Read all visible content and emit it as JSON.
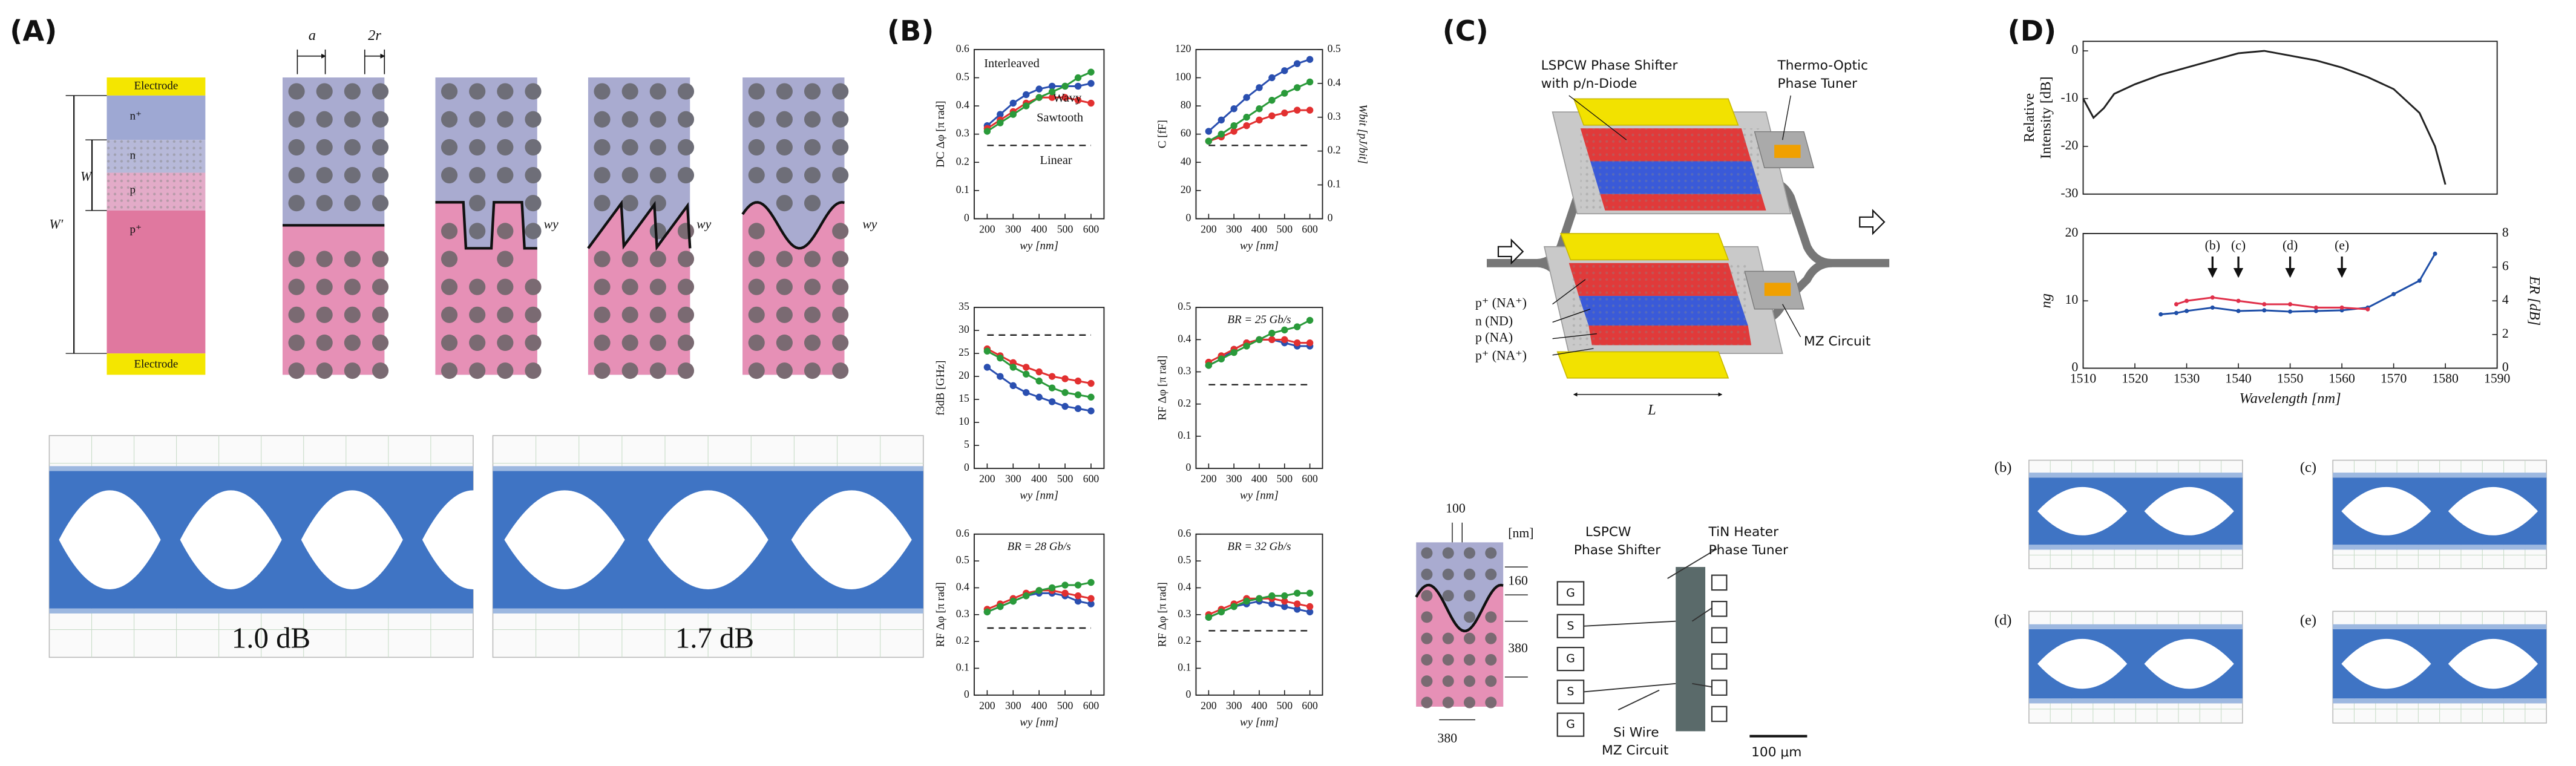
{
  "figure": {
    "labels": [
      "(A)",
      "(B)",
      "(C)",
      "(D)"
    ]
  },
  "panel_a": {
    "stack": [
      "Electrode",
      "n⁺",
      "n",
      "p",
      "p⁺",
      "Electrode"
    ],
    "dims": [
      "W′",
      "W",
      "a",
      "2r"
    ],
    "wy_labels": [
      "wy",
      "wy",
      "wy"
    ]
  },
  "panel_c": {
    "device": [
      "LSPCW Phase Shifter",
      "with p/n-Diode",
      "Thermo-Optic",
      "Phase Tuner",
      "p⁺ (NA⁺)",
      "n (ND)",
      "p (NA)",
      "p⁺ (NA⁺)",
      "L",
      "MZ Circuit"
    ],
    "crystal": [
      "100",
      "[nm]",
      "160",
      "380",
      "380"
    ],
    "layout": [
      "LSPCW",
      "Phase Shifter",
      "TiN Heater",
      "Phase Tuner",
      "Si Wire",
      "MZ Circuit",
      "100 μm"
    ],
    "pads": [
      "G",
      "S",
      "G",
      "S",
      "G"
    ]
  },
  "eye_diagrams": {
    "a_labels": [
      "1.0 dB",
      "1.7 dB"
    ],
    "d_labels": [
      "(b)",
      "(c)",
      "(d)",
      "(e)"
    ]
  },
  "chart_data": [
    {
      "type": "line",
      "ylabel": [
        "DC Δφ [π rad]"
      ],
      "xlabel": "wy [nm]",
      "legend": true,
      "markers": true,
      "x": [
        200,
        250,
        300,
        350,
        400,
        450,
        500,
        550,
        600
      ],
      "xlim": [
        150,
        650
      ],
      "xticks": [
        200,
        300,
        400,
        500,
        600
      ],
      "ylim": [
        0,
        0.6
      ],
      "yticks": [
        0,
        0.1,
        0.2,
        0.3,
        0.4,
        0.5,
        0.6
      ],
      "series": [
        {
          "name": "Interleaved",
          "color": "#2a4fb0",
          "values": [
            0.33,
            0.37,
            0.41,
            0.44,
            0.46,
            0.47,
            0.47,
            0.47,
            0.48
          ]
        },
        {
          "name": "Wavy",
          "color": "#e23030",
          "values": [
            0.32,
            0.35,
            0.38,
            0.41,
            0.43,
            0.43,
            0.43,
            0.42,
            0.41
          ]
        },
        {
          "name": "Sawtooth",
          "color": "#2a9a3a",
          "values": [
            0.31,
            0.34,
            0.37,
            0.4,
            0.43,
            0.45,
            0.47,
            0.5,
            0.52
          ]
        },
        {
          "name": "Linear",
          "color": "#222222",
          "style": "dashed",
          "values": [
            0.26,
            0.26,
            0.26,
            0.26,
            0.26,
            0.26,
            0.26,
            0.26,
            0.26
          ]
        }
      ]
    },
    {
      "type": "line",
      "ylabel": [
        "C [fF]"
      ],
      "y2label": "Wbit [pJ/bit]",
      "xlabel": "wy [nm]",
      "markers": true,
      "x": [
        200,
        250,
        300,
        350,
        400,
        450,
        500,
        550,
        600
      ],
      "xlim": [
        150,
        650
      ],
      "xticks": [
        200,
        300,
        400,
        500,
        600
      ],
      "ylim": [
        0,
        120
      ],
      "yticks": [
        0,
        20,
        40,
        60,
        80,
        100,
        120
      ],
      "y2lim": [
        0,
        0.5
      ],
      "y2ticks": [
        0,
        0.1,
        0.2,
        0.3,
        0.4,
        0.5
      ],
      "series": [
        {
          "color": "#2a4fb0",
          "values": [
            62,
            70,
            78,
            86,
            93,
            100,
            105,
            110,
            113
          ]
        },
        {
          "color": "#e23030",
          "values": [
            55,
            58,
            62,
            66,
            70,
            73,
            75,
            77,
            77
          ]
        },
        {
          "color": "#2a9a3a",
          "values": [
            55,
            60,
            66,
            72,
            78,
            84,
            89,
            93,
            97
          ]
        },
        {
          "color": "#222222",
          "style": "dashed",
          "values": [
            52,
            52,
            52,
            52,
            52,
            52,
            52,
            52,
            52
          ]
        }
      ]
    },
    {
      "type": "line",
      "ylabel": [
        "f3dB [GHz]"
      ],
      "xlabel": "wy [nm]",
      "markers": true,
      "x": [
        200,
        250,
        300,
        350,
        400,
        450,
        500,
        550,
        600
      ],
      "xlim": [
        150,
        650
      ],
      "xticks": [
        200,
        300,
        400,
        500,
        600
      ],
      "ylim": [
        0,
        35
      ],
      "yticks": [
        0,
        5,
        10,
        15,
        20,
        25,
        30,
        35
      ],
      "series": [
        {
          "color": "#2a4fb0",
          "values": [
            22,
            20,
            18,
            16.5,
            15.5,
            14.5,
            13.5,
            13,
            12.5
          ]
        },
        {
          "color": "#e23030",
          "values": [
            26,
            24.5,
            23,
            22,
            21,
            20,
            19.5,
            19,
            18.5
          ]
        },
        {
          "color": "#2a9a3a",
          "values": [
            25.5,
            24,
            22,
            20.5,
            19,
            17.5,
            16.5,
            16,
            15.5
          ]
        },
        {
          "color": "#222222",
          "style": "dashed",
          "values": [
            29,
            29,
            29,
            29,
            29,
            29,
            29,
            29,
            29
          ]
        }
      ]
    },
    {
      "type": "line",
      "ylabel": [
        "RF Δφ [π rad]"
      ],
      "xlabel": "wy [nm]",
      "annotation": "BR = 25 Gb/s",
      "markers": true,
      "x": [
        200,
        250,
        300,
        350,
        400,
        450,
        500,
        550,
        600
      ],
      "xlim": [
        150,
        650
      ],
      "xticks": [
        200,
        300,
        400,
        500,
        600
      ],
      "ylim": [
        0,
        0.5
      ],
      "yticks": [
        0,
        0.1,
        0.2,
        0.3,
        0.4,
        0.5
      ],
      "series": [
        {
          "color": "#2a4fb0",
          "values": [
            0.32,
            0.34,
            0.37,
            0.39,
            0.4,
            0.4,
            0.39,
            0.38,
            0.38
          ]
        },
        {
          "color": "#e23030",
          "values": [
            0.33,
            0.35,
            0.37,
            0.39,
            0.4,
            0.4,
            0.4,
            0.39,
            0.39
          ]
        },
        {
          "color": "#2a9a3a",
          "values": [
            0.32,
            0.34,
            0.36,
            0.38,
            0.4,
            0.42,
            0.43,
            0.44,
            0.46
          ]
        },
        {
          "color": "#222222",
          "style": "dashed",
          "values": [
            0.26,
            0.26,
            0.26,
            0.26,
            0.26,
            0.26,
            0.26,
            0.26,
            0.26
          ]
        }
      ]
    },
    {
      "type": "line",
      "ylabel": [
        "RF Δφ [π rad]"
      ],
      "xlabel": "wy [nm]",
      "annotation": "BR = 28 Gb/s",
      "markers": true,
      "x": [
        200,
        250,
        300,
        350,
        400,
        450,
        500,
        550,
        600
      ],
      "xlim": [
        150,
        650
      ],
      "xticks": [
        200,
        300,
        400,
        500,
        600
      ],
      "ylim": [
        0,
        0.6
      ],
      "yticks": [
        0,
        0.1,
        0.2,
        0.3,
        0.4,
        0.5,
        0.6
      ],
      "series": [
        {
          "color": "#2a4fb0",
          "values": [
            0.31,
            0.33,
            0.35,
            0.37,
            0.38,
            0.38,
            0.37,
            0.35,
            0.34
          ]
        },
        {
          "color": "#e23030",
          "values": [
            0.32,
            0.34,
            0.36,
            0.38,
            0.39,
            0.39,
            0.38,
            0.37,
            0.36
          ]
        },
        {
          "color": "#2a9a3a",
          "values": [
            0.31,
            0.33,
            0.35,
            0.37,
            0.39,
            0.4,
            0.41,
            0.41,
            0.42
          ]
        },
        {
          "color": "#222222",
          "style": "dashed",
          "values": [
            0.25,
            0.25,
            0.25,
            0.25,
            0.25,
            0.25,
            0.25,
            0.25,
            0.25
          ]
        }
      ]
    },
    {
      "type": "line",
      "ylabel": [
        "RF Δφ [π rad]"
      ],
      "xlabel": "wy [nm]",
      "annotation": "BR = 32 Gb/s",
      "markers": true,
      "x": [
        200,
        250,
        300,
        350,
        400,
        450,
        500,
        550,
        600
      ],
      "xlim": [
        150,
        650
      ],
      "xticks": [
        200,
        300,
        400,
        500,
        600
      ],
      "ylim": [
        0,
        0.6
      ],
      "yticks": [
        0,
        0.1,
        0.2,
        0.3,
        0.4,
        0.5,
        0.6
      ],
      "series": [
        {
          "color": "#2a4fb0",
          "values": [
            0.29,
            0.31,
            0.33,
            0.34,
            0.35,
            0.34,
            0.33,
            0.32,
            0.31
          ]
        },
        {
          "color": "#e23030",
          "values": [
            0.3,
            0.32,
            0.34,
            0.36,
            0.36,
            0.36,
            0.35,
            0.34,
            0.33
          ]
        },
        {
          "color": "#2a9a3a",
          "values": [
            0.29,
            0.31,
            0.33,
            0.35,
            0.36,
            0.37,
            0.37,
            0.38,
            0.38
          ]
        },
        {
          "color": "#222222",
          "style": "dashed",
          "values": [
            0.24,
            0.24,
            0.24,
            0.24,
            0.24,
            0.24,
            0.24,
            0.24,
            0.24
          ]
        }
      ]
    },
    {
      "type": "line",
      "ylabel": [
        "Relative",
        "Intensity [dB]"
      ],
      "x": [
        1510,
        1512,
        1514,
        1516,
        1520,
        1525,
        1530,
        1535,
        1540,
        1545,
        1550,
        1555,
        1560,
        1565,
        1570,
        1575,
        1578,
        1580
      ],
      "xlim": [
        1510,
        1590
      ],
      "ylim": [
        -30,
        2
      ],
      "yticks": [
        -30,
        -20,
        -10,
        0
      ],
      "series": [
        {
          "color": "#222222",
          "values": [
            -10,
            -14,
            -12,
            -9,
            -7,
            -5,
            -3.5,
            -2,
            -0.5,
            0,
            -1,
            -2,
            -3.5,
            -5.5,
            -8,
            -13,
            -20,
            -28
          ]
        }
      ]
    },
    {
      "type": "line",
      "ylabel": [
        "ng"
      ],
      "y2label": "ER [dB]",
      "xlabel": "Wavelength [nm]",
      "markers": true,
      "x": [
        1525,
        1528,
        1530,
        1535,
        1540,
        1545,
        1550,
        1555,
        1560,
        1565,
        1570,
        1575,
        1578
      ],
      "xlim": [
        1510,
        1590
      ],
      "xticks": [
        1510,
        1520,
        1530,
        1540,
        1550,
        1560,
        1570,
        1580,
        1590
      ],
      "ylim": [
        0,
        20
      ],
      "yticks": [
        0,
        10,
        20
      ],
      "y2lim": [
        0,
        8
      ],
      "y2ticks": [
        0,
        2,
        4,
        6,
        8
      ],
      "annotations": [
        {
          "text": "(b)",
          "x": 1535
        },
        {
          "text": "(c)",
          "x": 1540
        },
        {
          "text": "(d)",
          "x": 1550
        },
        {
          "text": "(e)",
          "x": 1560
        }
      ],
      "series": [
        {
          "color": "#1f4fa8",
          "values": [
            8,
            8.2,
            8.5,
            9,
            8.5,
            8.6,
            8.4,
            8.5,
            8.6,
            9,
            11,
            13,
            17
          ]
        },
        {
          "color": "#e0304a",
          "axis": "y2",
          "values": [
            null,
            3.8,
            4,
            4.2,
            4,
            3.8,
            3.8,
            3.6,
            3.6,
            3.5,
            null,
            null,
            null
          ]
        }
      ]
    }
  ]
}
